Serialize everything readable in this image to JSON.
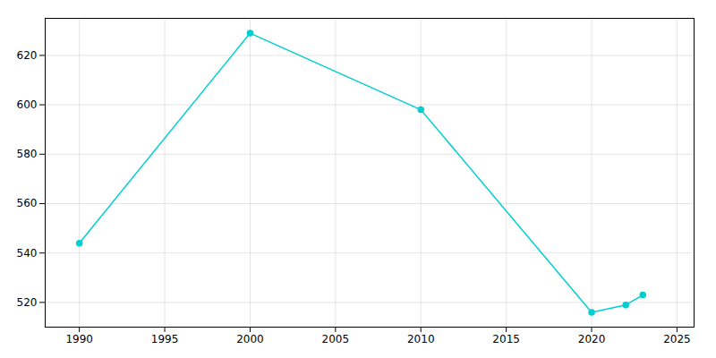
{
  "chart_data": {
    "type": "line",
    "x": [
      1990,
      2000,
      2010,
      2020,
      2022,
      2023
    ],
    "values": [
      544,
      629,
      598,
      516,
      519,
      523
    ],
    "color": "#00CED1",
    "marker": "circle",
    "xlim": [
      1988,
      2026
    ],
    "ylim": [
      510,
      635
    ],
    "xticks": [
      1990,
      1995,
      2000,
      2005,
      2010,
      2015,
      2020,
      2025
    ],
    "yticks": [
      520,
      540,
      560,
      580,
      600,
      620
    ],
    "grid": true
  }
}
